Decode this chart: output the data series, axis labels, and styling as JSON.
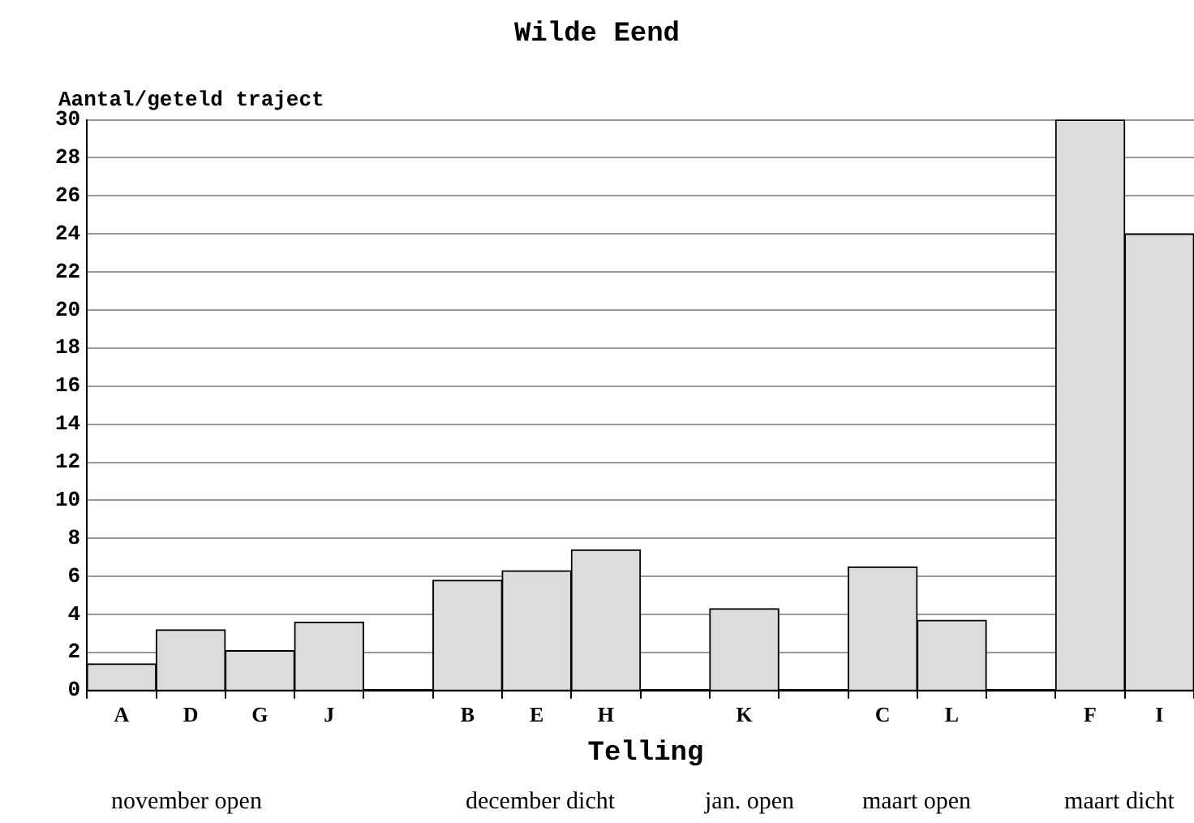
{
  "chart_data": {
    "type": "bar",
    "title": "Wilde Eend",
    "ylabel": "Aantal/geteld traject",
    "xlabel": "Telling",
    "categories": [
      "A",
      "D",
      "G",
      "J",
      null,
      "B",
      "E",
      "H",
      null,
      "K",
      null,
      "C",
      "L",
      null,
      "F",
      "I"
    ],
    "values": [
      1.4,
      3.2,
      2.1,
      3.6,
      null,
      5.8,
      6.3,
      7.4,
      null,
      4.3,
      null,
      6.5,
      3.7,
      null,
      30,
      24
    ],
    "color": "#dcdcdc",
    "ylim": [
      0,
      30
    ],
    "yticks": [
      0,
      2,
      4,
      6,
      8,
      10,
      12,
      14,
      16,
      18,
      20,
      22,
      24,
      26,
      28,
      30
    ],
    "grid": "y",
    "legend": false,
    "annotations": [
      "november open",
      "december dicht",
      "jan. open",
      "maart open",
      "maart dicht"
    ]
  }
}
